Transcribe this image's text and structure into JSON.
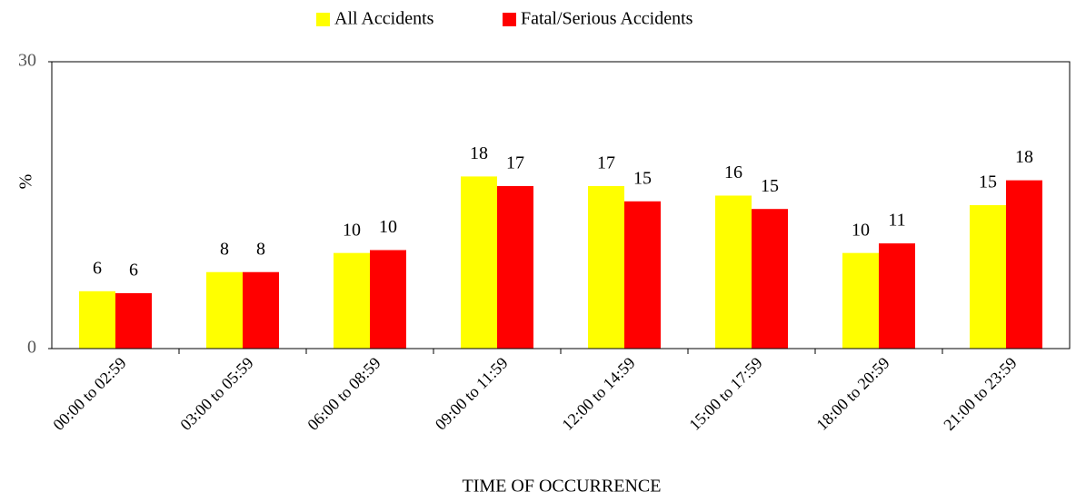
{
  "chart_data": {
    "type": "bar",
    "categories": [
      "00:00 to 02:59",
      "03:00 to 05:59",
      "06:00 to 08:59",
      "09:00 to 11:59",
      "12:00 to 14:59",
      "15:00 to 17:59",
      "18:00 to 20:59",
      "21:00 to 23:59"
    ],
    "series": [
      {
        "name": "All Accidents",
        "color": "#ffff00",
        "values": [
          6,
          8,
          10,
          18,
          17,
          16,
          10,
          15
        ]
      },
      {
        "name": "Fatal/Serious Accidents",
        "color": "#ff0000",
        "values": [
          5.8,
          8,
          10.3,
          17,
          15.4,
          14.6,
          11,
          17.6
        ],
        "value_labels": [
          6,
          8,
          10,
          17,
          15,
          15,
          11,
          18
        ]
      }
    ],
    "y_label": "%",
    "x_label": "TIME OF OCCURRENCE",
    "ylim": [
      0,
      30
    ],
    "yticks": [
      0,
      30
    ],
    "legend": "top"
  }
}
